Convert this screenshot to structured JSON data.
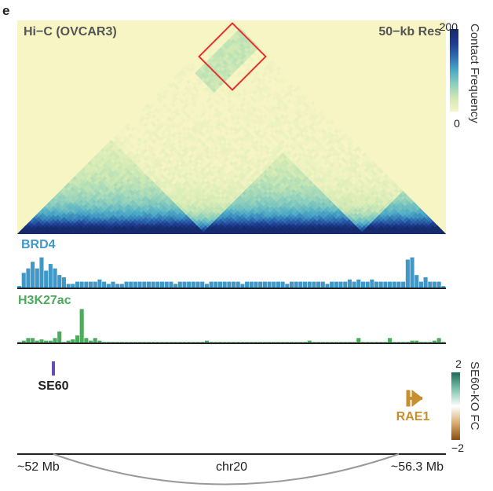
{
  "panel_label": "e",
  "chart_data": [
    {
      "type": "heatmap",
      "title": "Hi−C (OVCAR3)",
      "resolution_label": "50−kb Res",
      "colorbar": {
        "label": "Contact Frequency",
        "min_label": "0",
        "max_label": "200",
        "min": 0,
        "max": 200,
        "colors": [
          "#f7f5c4",
          "#cfe9b4",
          "#8ccfbd",
          "#4ba9c6",
          "#2c6cb0",
          "#1f3a8f",
          "#172a6b"
        ]
      },
      "highlight_color": "#e3342f",
      "tads": [
        {
          "start": 0.0,
          "end": 0.43
        },
        {
          "start": 0.43,
          "end": 0.8
        },
        {
          "start": 0.8,
          "end": 1.0
        }
      ]
    },
    {
      "type": "bar",
      "title": "BRD4",
      "color": "#3f98c8",
      "values": [
        1,
        7,
        9,
        12,
        9,
        14,
        8,
        11,
        9,
        6,
        5,
        2,
        2,
        3,
        3,
        3,
        3,
        3,
        4,
        3,
        2,
        3,
        2,
        2,
        3,
        3,
        3,
        3,
        3,
        3,
        3,
        3,
        3,
        3,
        3,
        2,
        3,
        3,
        3,
        3,
        3,
        3,
        2,
        3,
        3,
        3,
        3,
        3,
        3,
        3,
        2,
        3,
        3,
        3,
        3,
        3,
        3,
        3,
        3,
        3,
        2,
        3,
        3,
        3,
        3,
        3,
        3,
        3,
        3,
        2,
        3,
        3,
        3,
        3,
        4,
        3,
        4,
        3,
        3,
        4,
        3,
        3,
        3,
        3,
        3,
        3,
        3,
        13,
        14,
        6,
        3,
        5,
        3,
        3,
        3,
        1
      ],
      "ymax": 16
    },
    {
      "type": "bar",
      "title": "H3K27ac",
      "color": "#4cab5c",
      "values": [
        0.5,
        1,
        2,
        2,
        1,
        1.5,
        1,
        1,
        2,
        4.5,
        0.5,
        1,
        1.5,
        3,
        13,
        2,
        1,
        2,
        1,
        0.5,
        0.5,
        0.5,
        0.5,
        0.5,
        0.5,
        0.5,
        0.5,
        0.5,
        0.5,
        0.5,
        0.5,
        0.5,
        0.5,
        0.5,
        0.5,
        0.5,
        0.5,
        0.5,
        0.5,
        0.5,
        0.5,
        0.5,
        1,
        0.5,
        0.5,
        0.5,
        0.5,
        0.5,
        0.5,
        0.5,
        0.5,
        0.5,
        0.5,
        0.5,
        0.5,
        0.5,
        0.5,
        0.5,
        0.5,
        0.5,
        0.5,
        0.5,
        0.5,
        0.5,
        0.5,
        1,
        0.5,
        0.5,
        0.5,
        0.5,
        0.5,
        0.5,
        0.5,
        0.5,
        0.5,
        0.5,
        2,
        0.5,
        0.5,
        0.5,
        0.5,
        0.5,
        0.5,
        2,
        0.5,
        0.5,
        0.5,
        0.5,
        1,
        1,
        0.5,
        0.5,
        0.5,
        1,
        2,
        0.5
      ],
      "ymax": 14
    }
  ],
  "annotations": {
    "se60_label": "SE60",
    "se60_color": "#6a4bb3",
    "gene_label": "RAE1",
    "gene_color": "#c88f2f",
    "fc_colorbar": {
      "label": "SE60-KO FC",
      "max_label": "2",
      "min_label": "−2",
      "max": 2,
      "min": -2,
      "colors": [
        "#1a6a5a",
        "#7fc4ae",
        "#ffffff",
        "#d9ad6e",
        "#8a4f12"
      ]
    }
  },
  "axis": {
    "left_label": "~52 Mb",
    "center_label": "chr20",
    "right_label": "~56.3 Mb"
  }
}
